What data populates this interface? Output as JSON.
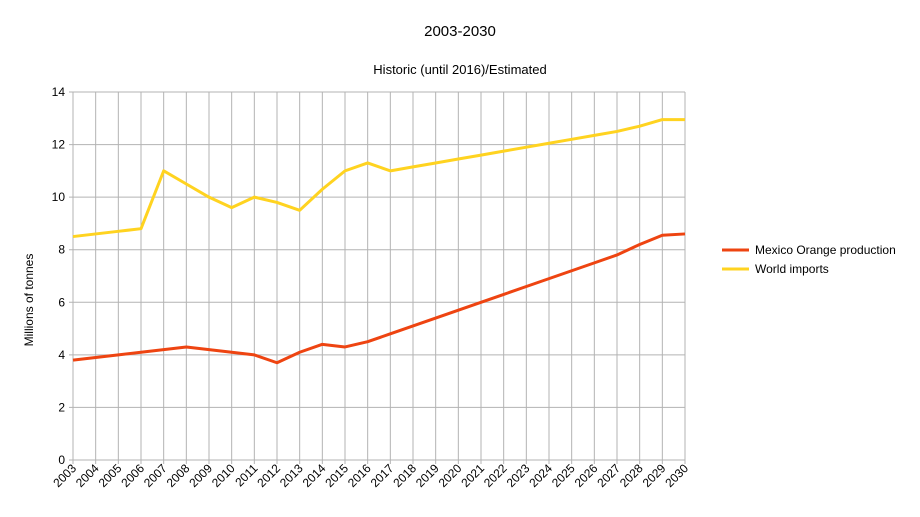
{
  "chart_data": {
    "type": "line",
    "title": "2003-2030",
    "subtitle": "Historic (until 2016)/Estimated",
    "xlabel": "",
    "ylabel": "Millions of tonnes",
    "ylim": [
      0,
      14
    ],
    "yticks": [
      0,
      2,
      4,
      6,
      8,
      10,
      12,
      14
    ],
    "grid": true,
    "legend_position": "right",
    "categories": [
      "2003",
      "2004",
      "2005",
      "2006",
      "2007",
      "2008",
      "2009",
      "2010",
      "2011",
      "2012",
      "2013",
      "2014",
      "2015",
      "2016",
      "2017",
      "2018",
      "2019",
      "2020",
      "2021",
      "2022",
      "2023",
      "2024",
      "2025",
      "2026",
      "2027",
      "2028",
      "2029",
      "2030"
    ],
    "series": [
      {
        "name": "Mexico Orange production",
        "color": "#ee4411",
        "values": [
          3.8,
          3.9,
          4.0,
          4.1,
          4.2,
          4.3,
          4.2,
          4.1,
          4.0,
          3.7,
          4.1,
          4.4,
          4.3,
          4.5,
          4.8,
          5.1,
          5.4,
          5.7,
          6.0,
          6.3,
          6.6,
          6.9,
          7.2,
          7.5,
          7.8,
          8.2,
          8.55,
          8.6
        ]
      },
      {
        "name": "World imports",
        "color": "#ffd320",
        "values": [
          8.5,
          8.6,
          8.7,
          8.8,
          11.0,
          10.5,
          10.0,
          9.6,
          10.0,
          9.8,
          9.5,
          10.3,
          11.0,
          11.3,
          11.0,
          11.15,
          11.3,
          11.45,
          11.6,
          11.75,
          11.9,
          12.05,
          12.2,
          12.35,
          12.5,
          12.7,
          12.95,
          12.95
        ]
      }
    ]
  }
}
